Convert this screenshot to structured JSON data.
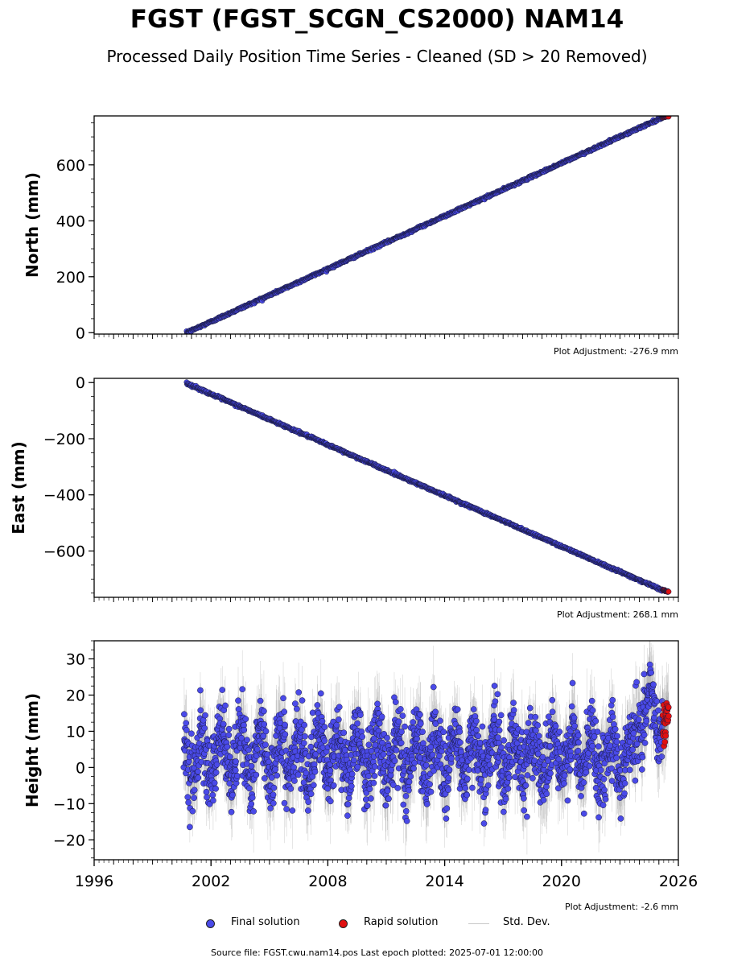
{
  "header": {
    "title": "FGST (FGST_SCGN_CS2000) NAM14",
    "subtitle": "Processed Daily Position Time Series - Cleaned (SD > 20 Removed)"
  },
  "legend": {
    "final_label": "Final solution",
    "rapid_label": "Rapid solution",
    "std_label": "Std. Dev."
  },
  "footer": {
    "text": "Source file: FGST.cwu.nam14.pos  Last epoch plotted: 2025-07-01 12:00:00"
  },
  "colors": {
    "final": "#4a4ae8",
    "rapid": "#e01010",
    "std": "#888888",
    "edge": "#1a1a40"
  },
  "chart_data": [
    {
      "type": "scatter",
      "ylabel": "North (mm)",
      "adjustment": "Plot Adjustment: -276.9 mm",
      "xlim": [
        1996,
        2026
      ],
      "ylim": [
        -5,
        775
      ],
      "yticks": [
        0,
        200,
        400,
        600
      ],
      "ytick_labels": [
        "0",
        "200",
        "400",
        "600"
      ],
      "series": [
        {
          "name": "Final solution",
          "kind": "linear-trend",
          "x_range": [
            2000.75,
            2025.2
          ],
          "y_at_start": 0,
          "y_at_end": 770,
          "scatter_sd": 2
        },
        {
          "name": "Rapid solution",
          "kind": "linear-trend",
          "x_range": [
            2025.2,
            2025.5
          ],
          "y_at_start": 770,
          "y_at_end": 776,
          "scatter_sd": 1
        }
      ]
    },
    {
      "type": "scatter",
      "ylabel": "East (mm)",
      "adjustment": "Plot Adjustment: 268.1 mm",
      "xlim": [
        1996,
        2026
      ],
      "ylim": [
        -765,
        15
      ],
      "yticks": [
        0,
        -200,
        -400,
        -600
      ],
      "ytick_labels": [
        "0",
        "−200",
        "−400",
        "−600"
      ],
      "series": [
        {
          "name": "Final solution",
          "kind": "linear-trend",
          "x_range": [
            2000.75,
            2025.2
          ],
          "y_at_start": -3,
          "y_at_end": -740,
          "scatter_sd": 2
        },
        {
          "name": "Rapid solution",
          "kind": "linear-trend",
          "x_range": [
            2025.2,
            2025.5
          ],
          "y_at_start": -740,
          "y_at_end": -745,
          "scatter_sd": 1
        }
      ]
    },
    {
      "type": "scatter",
      "ylabel": "Height (mm)",
      "adjustment": "Plot Adjustment: -2.6 mm",
      "xlim": [
        1996,
        2026
      ],
      "ylim": [
        -25.5,
        35
      ],
      "yticks": [
        -20,
        -10,
        0,
        10,
        20,
        30
      ],
      "ytick_labels": [
        "−20",
        "−10",
        "0",
        "10",
        "20",
        "30"
      ],
      "xticks": [
        1996,
        2002,
        2008,
        2014,
        2020,
        2026
      ],
      "xtick_labels": [
        "1996",
        "2002",
        "2008",
        "2014",
        "2020",
        "2026"
      ],
      "series": [
        {
          "name": "Final solution",
          "kind": "noisy",
          "x_range": [
            2000.6,
            2025.2
          ],
          "mean": 3.5,
          "seasonal_amplitude": 6,
          "noise_sd": 5,
          "late_mean": 15
        },
        {
          "name": "Rapid solution",
          "kind": "noisy",
          "x_range": [
            2025.2,
            2025.5
          ],
          "mean": 13,
          "noise_sd": 3
        }
      ]
    }
  ]
}
